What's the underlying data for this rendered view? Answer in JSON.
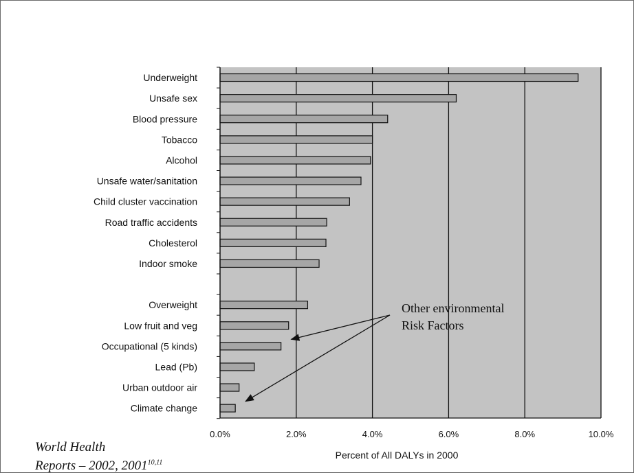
{
  "chart_data": {
    "type": "bar",
    "orientation": "horizontal",
    "categories": [
      "Underweight",
      "Unsafe sex",
      "Blood pressure",
      "Tobacco",
      "Alcohol",
      "Unsafe water/sanitation",
      "Child cluster vaccination",
      "Road traffic accidents",
      "Cholesterol",
      "Indoor smoke",
      "",
      "Overweight",
      "Low fruit and veg",
      "Occupational (5 kinds)",
      "Lead (Pb)",
      "Urban outdoor air",
      "Climate change"
    ],
    "values": [
      9.4,
      6.2,
      4.4,
      4.0,
      3.95,
      3.7,
      3.4,
      2.8,
      2.78,
      2.6,
      null,
      2.3,
      1.8,
      1.6,
      0.9,
      0.5,
      0.4
    ],
    "xlabel": "Percent of All DALYs in 2000",
    "ylabel": "",
    "title": "",
    "xlim": [
      0,
      10
    ],
    "xticks": [
      "0.0%",
      "2.0%",
      "4.0%",
      "6.0%",
      "8.0%",
      "10.0%"
    ],
    "grid": "vertical",
    "colors": {
      "bar": "#a6a6a6",
      "plot_background": "#c3c3c3",
      "gridline": "#111111"
    },
    "annotation": {
      "lines": [
        "Other environmental",
        "Risk Factors"
      ],
      "arrow_targets": [
        "Occupational (5 kinds)",
        "Climate change"
      ]
    }
  },
  "source": {
    "line1": "World Health",
    "line2": "Reports – 2002, 2001",
    "superscript": "10,11"
  }
}
